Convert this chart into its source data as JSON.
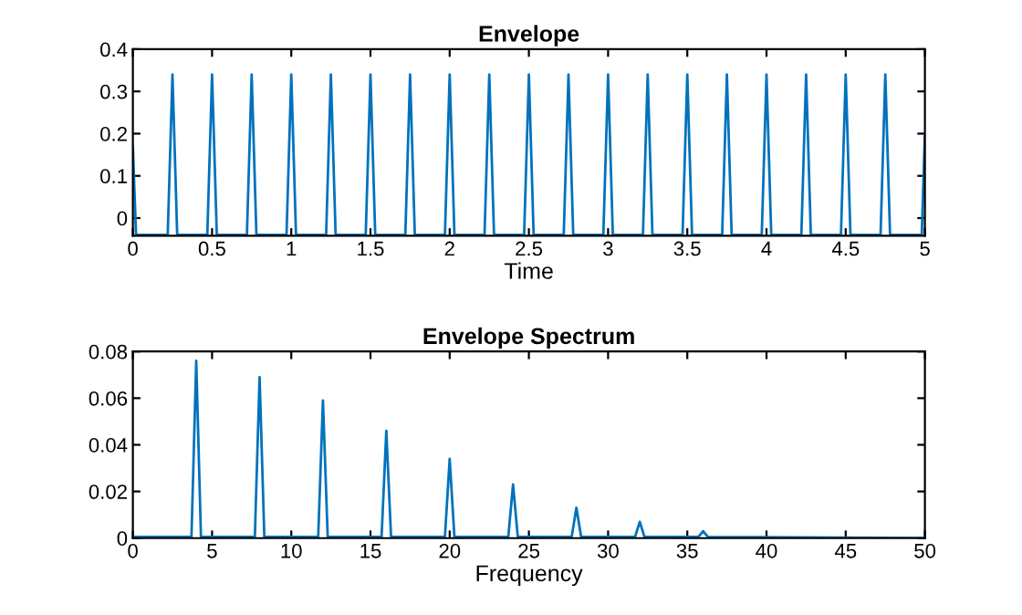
{
  "chart_data": [
    {
      "type": "line",
      "title": "Envelope",
      "xlabel": "Time",
      "xlim": [
        0,
        5
      ],
      "xticks": [
        0,
        0.5,
        1,
        1.5,
        2,
        2.5,
        3,
        3.5,
        4,
        4.5,
        5
      ],
      "ylim": [
        -0.042,
        0.4
      ],
      "yticks": [
        0,
        0.1,
        0.2,
        0.3,
        0.4
      ],
      "grid": false,
      "legend": false,
      "series": [
        {
          "color": "#0072bd",
          "x": [
            0,
            0.02,
            0.22,
            0.25,
            0.28,
            0.47,
            0.5,
            0.53,
            0.72,
            0.75,
            0.78,
            0.97,
            1.0,
            1.03,
            1.22,
            1.25,
            1.28,
            1.47,
            1.5,
            1.53,
            1.72,
            1.75,
            1.78,
            1.97,
            2.0,
            2.03,
            2.22,
            2.25,
            2.28,
            2.47,
            2.5,
            2.53,
            2.72,
            2.75,
            2.78,
            2.97,
            3.0,
            3.03,
            3.22,
            3.25,
            3.28,
            3.47,
            3.5,
            3.53,
            3.72,
            3.75,
            3.78,
            3.97,
            4.0,
            4.03,
            4.22,
            4.25,
            4.28,
            4.47,
            4.5,
            4.53,
            4.72,
            4.75,
            4.78,
            4.98,
            5.0
          ],
          "values": [
            0.17,
            -0.04,
            -0.04,
            0.34,
            -0.04,
            -0.04,
            0.34,
            -0.04,
            -0.04,
            0.34,
            -0.04,
            -0.04,
            0.34,
            -0.04,
            -0.04,
            0.34,
            -0.04,
            -0.04,
            0.34,
            -0.04,
            -0.04,
            0.34,
            -0.04,
            -0.04,
            0.34,
            -0.04,
            -0.04,
            0.34,
            -0.04,
            -0.04,
            0.34,
            -0.04,
            -0.04,
            0.34,
            -0.04,
            -0.04,
            0.34,
            -0.04,
            -0.04,
            0.34,
            -0.04,
            -0.04,
            0.34,
            -0.04,
            -0.04,
            0.34,
            -0.04,
            -0.04,
            0.34,
            -0.04,
            -0.04,
            0.34,
            -0.04,
            -0.04,
            0.34,
            -0.04,
            -0.04,
            0.34,
            -0.04,
            -0.04,
            0.2
          ]
        }
      ]
    },
    {
      "type": "line",
      "title": "Envelope Spectrum",
      "xlabel": "Frequency",
      "xlim": [
        0,
        50
      ],
      "xticks": [
        0,
        5,
        10,
        15,
        20,
        25,
        30,
        35,
        40,
        45,
        50
      ],
      "ylim": [
        0,
        0.08
      ],
      "yticks": [
        0,
        0.02,
        0.04,
        0.06,
        0.08
      ],
      "grid": false,
      "legend": false,
      "series": [
        {
          "color": "#0072bd",
          "x": [
            0,
            3.7,
            4,
            4.3,
            7.7,
            8,
            8.3,
            11.7,
            12,
            12.3,
            15.7,
            16,
            16.3,
            19.7,
            20,
            20.3,
            23.7,
            24,
            24.3,
            27.7,
            28,
            28.3,
            31.7,
            32,
            32.3,
            35.7,
            36,
            36.3,
            50
          ],
          "values": [
            0.0005,
            0.0005,
            0.076,
            0.0005,
            0.0005,
            0.069,
            0.0005,
            0.0005,
            0.059,
            0.0005,
            0.0005,
            0.046,
            0.0005,
            0.0005,
            0.034,
            0.0005,
            0.0005,
            0.023,
            0.0005,
            0.0005,
            0.013,
            0.0005,
            0.0005,
            0.007,
            0.0005,
            0.0005,
            0.003,
            0.0005,
            0
          ]
        }
      ]
    }
  ]
}
